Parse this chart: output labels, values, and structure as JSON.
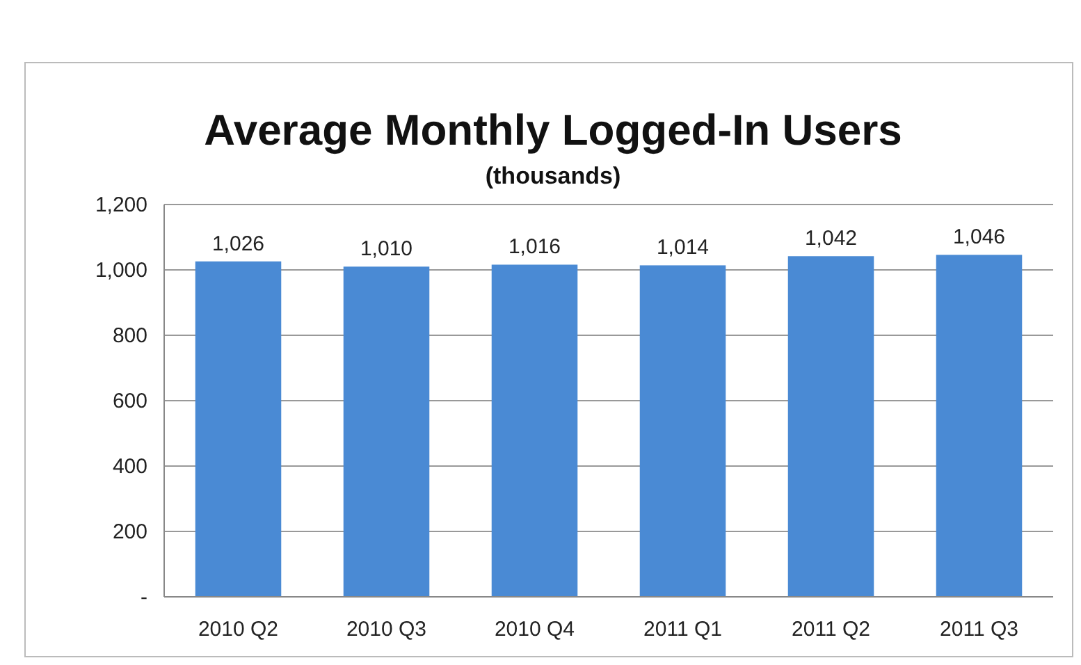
{
  "chart_data": {
    "type": "bar",
    "title": "Average Monthly Logged-In Users",
    "subtitle": "(thousands)",
    "categories": [
      "2010 Q2",
      "2010 Q3",
      "2010 Q4",
      "2011 Q1",
      "2011 Q2",
      "2011 Q3"
    ],
    "values": [
      1026,
      1010,
      1016,
      1014,
      1042,
      1046
    ],
    "color": "#4a8ad4",
    "ylim": [
      0,
      1200
    ],
    "yticks": [
      {
        "value": 0,
        "label": "-"
      },
      {
        "value": 200,
        "label": "200"
      },
      {
        "value": 400,
        "label": "400"
      },
      {
        "value": 600,
        "label": "600"
      },
      {
        "value": 800,
        "label": "800"
      },
      {
        "value": 1000,
        "label": "1,000"
      },
      {
        "value": 1200,
        "label": "1,200"
      }
    ],
    "value_labels": [
      "1,026",
      "1,010",
      "1,016",
      "1,014",
      "1,042",
      "1,046"
    ],
    "grid": "y"
  }
}
